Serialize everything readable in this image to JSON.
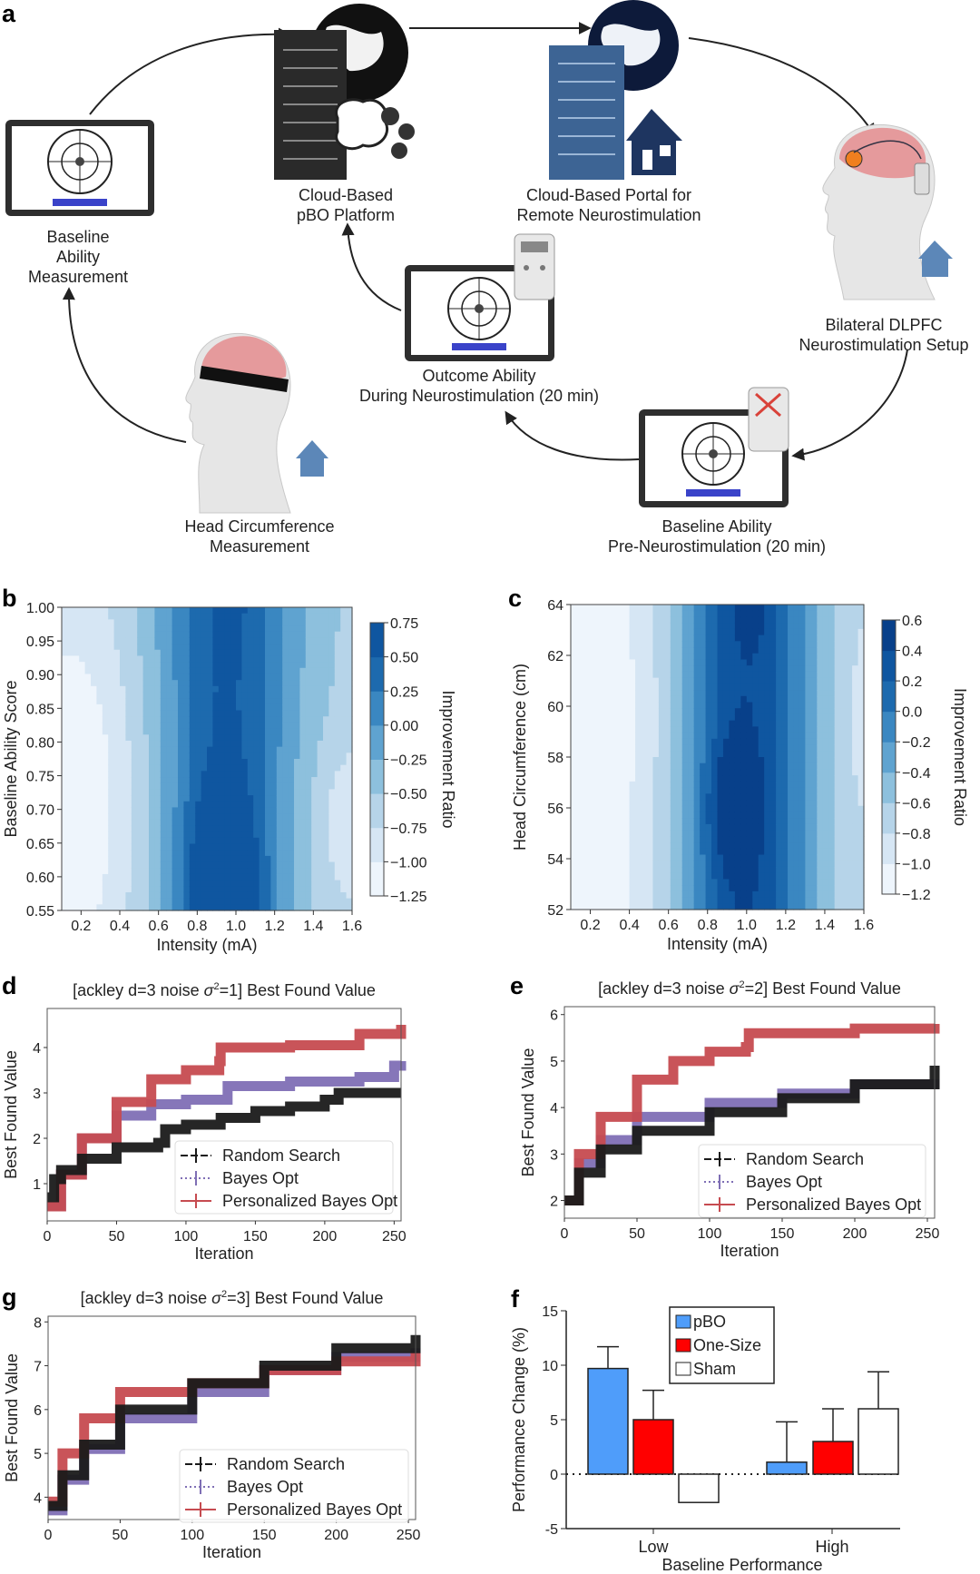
{
  "panel_a": {
    "letter": "a",
    "nodes": {
      "baseline_measurement": [
        "Baseline",
        "Ability",
        "Measurement"
      ],
      "cloud_pbo": [
        "Cloud-Based",
        "pBO Platform"
      ],
      "cloud_portal": [
        "Cloud-Based Portal for",
        "Remote Neurostimulation"
      ],
      "dlpfc_setup": [
        "Bilateral DLPFC",
        "Neurostimulation Setup"
      ],
      "outcome": [
        "Outcome Ability",
        "During Neurostimulation (20 min)"
      ],
      "baseline_pre": [
        "Baseline Ability",
        "Pre-Neurostimulation (20 min)"
      ],
      "head_circ": [
        "Head Circumference",
        "Measurement"
      ]
    }
  },
  "colors": {
    "blues": [
      "#eef5fc",
      "#d6e6f4",
      "#b6d4e9",
      "#8dc0dd",
      "#5fa3d0",
      "#3a87c1",
      "#1d6aae",
      "#0f56a0",
      "#08408a"
    ],
    "random": "#1a1a1a",
    "bayes": "#7f6fb5",
    "pbo": "#c64b50",
    "bar_pbo": "#4f9dfa",
    "bar_onesize": "#ff0000",
    "bar_sham": "#ffffff"
  },
  "chart_data": [
    {
      "id": "b",
      "letter": "b",
      "type": "heatmap",
      "xlabel": "Intensity (mA)",
      "ylabel": "Baseline Ability Score",
      "xlim": [
        0.1,
        1.6
      ],
      "ylim": [
        0.55,
        1.0
      ],
      "xticks": [
        "0.2",
        "0.4",
        "0.6",
        "0.8",
        "1.0",
        "1.2",
        "1.4",
        "1.6"
      ],
      "yticks": [
        "0.55",
        "0.60",
        "0.65",
        "0.70",
        "0.75",
        "0.80",
        "0.85",
        "0.90",
        "0.95",
        "1.00"
      ],
      "colorbar_label": "Improvement Ratio",
      "levels": [
        "−1.25",
        "−1.00",
        "−0.75",
        "−0.50",
        "−0.25",
        "0.00",
        "0.25",
        "0.50",
        "0.75"
      ],
      "level_values": [
        -1.25,
        -1.0,
        -0.75,
        -0.5,
        -0.25,
        0,
        0.25,
        0.5,
        0.75
      ],
      "peak": {
        "x": 0.93,
        "y": 0.55,
        "value": 0.75
      },
      "minimum": {
        "x": 0.15,
        "y": 0.72,
        "value": -1.25
      }
    },
    {
      "id": "c",
      "letter": "c",
      "type": "heatmap",
      "xlabel": "Intensity (mA)",
      "ylabel": "Head Circumference (cm)",
      "xlim": [
        0.1,
        1.6
      ],
      "ylim": [
        52,
        64
      ],
      "xticks": [
        "0.2",
        "0.4",
        "0.6",
        "0.8",
        "1.0",
        "1.2",
        "1.4",
        "1.6"
      ],
      "yticks": [
        "52",
        "54",
        "56",
        "58",
        "60",
        "62",
        "64"
      ],
      "colorbar_label": "Improvement Ratio",
      "levels": [
        "−1.2",
        "−1.0",
        "−0.8",
        "−0.6",
        "−0.4",
        "−0.2",
        "0.0",
        "0.2",
        "0.4",
        "0.6"
      ],
      "level_values": [
        -1.2,
        -1.0,
        -0.8,
        -0.6,
        -0.4,
        -0.2,
        0,
        0.2,
        0.4,
        0.6
      ],
      "peak": {
        "x": 0.93,
        "y": 56,
        "value": 0.6
      },
      "minimum": {
        "x": 0.3,
        "y": 59.5,
        "value": -1.2
      }
    },
    {
      "id": "d",
      "letter": "d",
      "type": "line",
      "title_pre": "[ackley d=3 noise ",
      "title_sigma": "σ",
      "title_sup": "2",
      "title_post": "=1] Best Found Value",
      "xlabel": "Iteration",
      "ylabel": "Best Found Value",
      "xlim": [
        0,
        255
      ],
      "ylim": [
        0.18,
        4.86
      ],
      "xticks": [
        0,
        50,
        100,
        150,
        200,
        250
      ],
      "yticks": [
        1,
        2,
        3,
        4
      ],
      "legend": [
        "Random Search",
        "Bayes Opt",
        "Personalized Bayes Opt"
      ],
      "legend_position": "bottom-right",
      "series": [
        {
          "name": "Random Search",
          "x": [
            0,
            5,
            10,
            25,
            50,
            80,
            85,
            100,
            125,
            150,
            175,
            200,
            210,
            255
          ],
          "y": [
            0.7,
            1.1,
            1.3,
            1.55,
            1.8,
            1.9,
            2.2,
            2.3,
            2.45,
            2.6,
            2.7,
            2.85,
            3.0,
            3.0
          ]
        },
        {
          "name": "Bayes Opt",
          "x": [
            0,
            10,
            25,
            50,
            75,
            100,
            130,
            175,
            225,
            250,
            255
          ],
          "y": [
            0.5,
            1.2,
            2.0,
            2.5,
            2.75,
            2.85,
            3.15,
            3.25,
            3.35,
            3.6,
            3.7
          ]
        },
        {
          "name": "Personalized Bayes Opt",
          "x": [
            0,
            10,
            25,
            50,
            75,
            100,
            124,
            125,
            175,
            225,
            255
          ],
          "y": [
            0.5,
            1.2,
            2.0,
            2.8,
            3.3,
            3.5,
            3.7,
            4.0,
            4.05,
            4.3,
            4.5
          ]
        }
      ]
    },
    {
      "id": "e",
      "letter": "e",
      "type": "line",
      "title_pre": "[ackley d=3 noise ",
      "title_sigma": "σ",
      "title_sup": "2",
      "title_post": "=2] Best Found Value",
      "xlabel": "Iteration",
      "ylabel": "Best Found Value",
      "xlim": [
        0,
        255
      ],
      "ylim": [
        1.62,
        6.17
      ],
      "xticks": [
        0,
        50,
        100,
        150,
        200,
        250
      ],
      "yticks": [
        2,
        3,
        4,
        5,
        6
      ],
      "legend": [
        "Random Search",
        "Bayes Opt",
        "Personalized Bayes Opt"
      ],
      "legend_position": "bottom-right",
      "series": [
        {
          "name": "Random Search",
          "x": [
            0,
            10,
            25,
            50,
            100,
            150,
            200,
            255
          ],
          "y": [
            2.0,
            2.6,
            3.1,
            3.5,
            3.9,
            4.2,
            4.5,
            4.9
          ]
        },
        {
          "name": "Bayes Opt",
          "x": [
            0,
            10,
            25,
            50,
            100,
            150,
            200,
            255
          ],
          "y": [
            2.0,
            2.8,
            3.3,
            3.8,
            4.1,
            4.3,
            4.5,
            4.6
          ]
        },
        {
          "name": "Personalized Bayes Opt",
          "x": [
            0,
            10,
            25,
            50,
            75,
            100,
            125,
            127,
            200,
            255
          ],
          "y": [
            2.0,
            3.0,
            3.8,
            4.6,
            5.0,
            5.2,
            5.3,
            5.6,
            5.7,
            5.8
          ]
        }
      ]
    },
    {
      "id": "g",
      "letter": "g",
      "type": "line",
      "title_pre": "[ackley d=3 noise ",
      "title_sigma": "σ",
      "title_sup": "2",
      "title_post": "=3] Best Found Value",
      "xlabel": "Iteration",
      "ylabel": "Best Found Value",
      "xlim": [
        0,
        255
      ],
      "ylim": [
        3.49,
        8.13
      ],
      "xticks": [
        0,
        50,
        100,
        150,
        200,
        250
      ],
      "yticks": [
        4,
        5,
        6,
        7,
        8
      ],
      "legend": [
        "Random Search",
        "Bayes Opt",
        "Personalized Bayes Opt"
      ],
      "legend_position": "bottom-right",
      "series": [
        {
          "name": "Random Search",
          "x": [
            0,
            10,
            25,
            50,
            100,
            150,
            200,
            255
          ],
          "y": [
            3.8,
            4.5,
            5.2,
            6.0,
            6.6,
            7.0,
            7.4,
            7.7
          ]
        },
        {
          "name": "Bayes Opt",
          "x": [
            0,
            10,
            25,
            50,
            100,
            150,
            200,
            255
          ],
          "y": [
            3.7,
            4.4,
            5.1,
            5.8,
            6.4,
            6.9,
            7.2,
            7.4
          ]
        },
        {
          "name": "Personalized Bayes Opt",
          "x": [
            0,
            10,
            25,
            50,
            100,
            150,
            200,
            255
          ],
          "y": [
            3.9,
            5.0,
            5.8,
            6.4,
            6.6,
            6.9,
            7.1,
            7.3
          ]
        }
      ]
    },
    {
      "id": "f",
      "letter": "f",
      "type": "bar",
      "xlabel": "Baseline Performance",
      "ylabel": "Performance Change (%)",
      "categories": [
        "Low",
        "High"
      ],
      "ylim": [
        -5,
        15
      ],
      "yticks": [
        "-5",
        "0",
        "5",
        "10",
        "15"
      ],
      "legend_position": "top-center",
      "series": [
        {
          "name": "pBO",
          "values": [
            9.7,
            1.1
          ],
          "error_upper": [
            11.7,
            4.8
          ]
        },
        {
          "name": "One-Size",
          "values": [
            5.0,
            3.0
          ],
          "error_upper": [
            7.7,
            6.0
          ]
        },
        {
          "name": "Sham",
          "values": [
            -2.6,
            6.0
          ],
          "error_upper": [
            -0.2,
            9.4
          ]
        }
      ]
    }
  ]
}
